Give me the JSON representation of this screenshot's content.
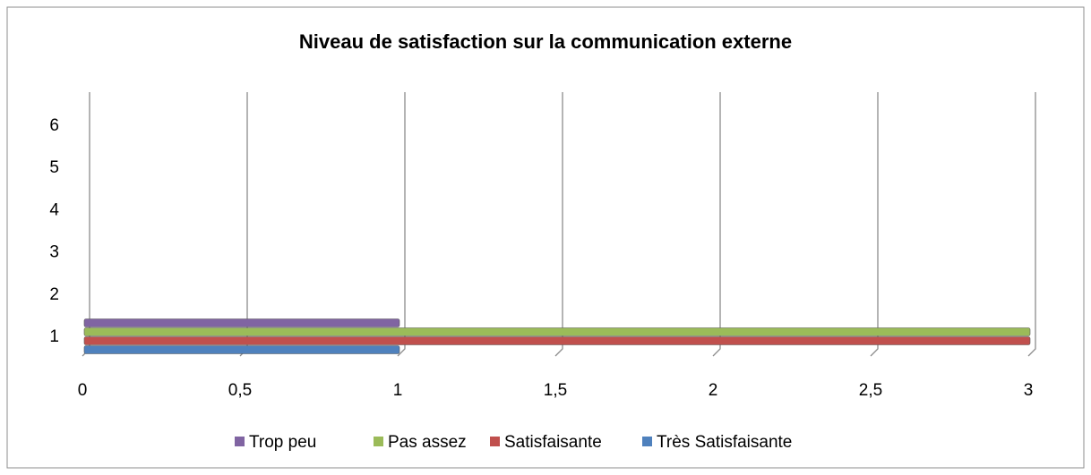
{
  "chart_data": {
    "type": "bar",
    "orientation": "horizontal",
    "title": "Niveau de satisfaction sur la communication externe",
    "categories": [
      "1",
      "2",
      "3",
      "4",
      "5",
      "6"
    ],
    "series": [
      {
        "name": "Trop peu",
        "color": "#8064a2",
        "values": [
          1,
          null,
          null,
          null,
          null,
          null
        ]
      },
      {
        "name": "Pas assez",
        "color": "#9bbb59",
        "values": [
          3,
          null,
          null,
          null,
          null,
          null
        ]
      },
      {
        "name": "Satisfaisante",
        "color": "#c0504d",
        "values": [
          3,
          null,
          null,
          null,
          null,
          null
        ]
      },
      {
        "name": "Très Satisfaisante",
        "color": "#4f81bd",
        "values": [
          1,
          null,
          null,
          null,
          null,
          null
        ]
      }
    ],
    "xlim": [
      0,
      3
    ],
    "xticks": [
      0,
      {
        "value": 0.5,
        "label": "0,5"
      },
      1,
      {
        "value": 1.5,
        "label": "1,5"
      },
      2,
      {
        "value": 2.5,
        "label": "2,5"
      },
      3
    ],
    "grid": true,
    "legend": "bottom"
  }
}
